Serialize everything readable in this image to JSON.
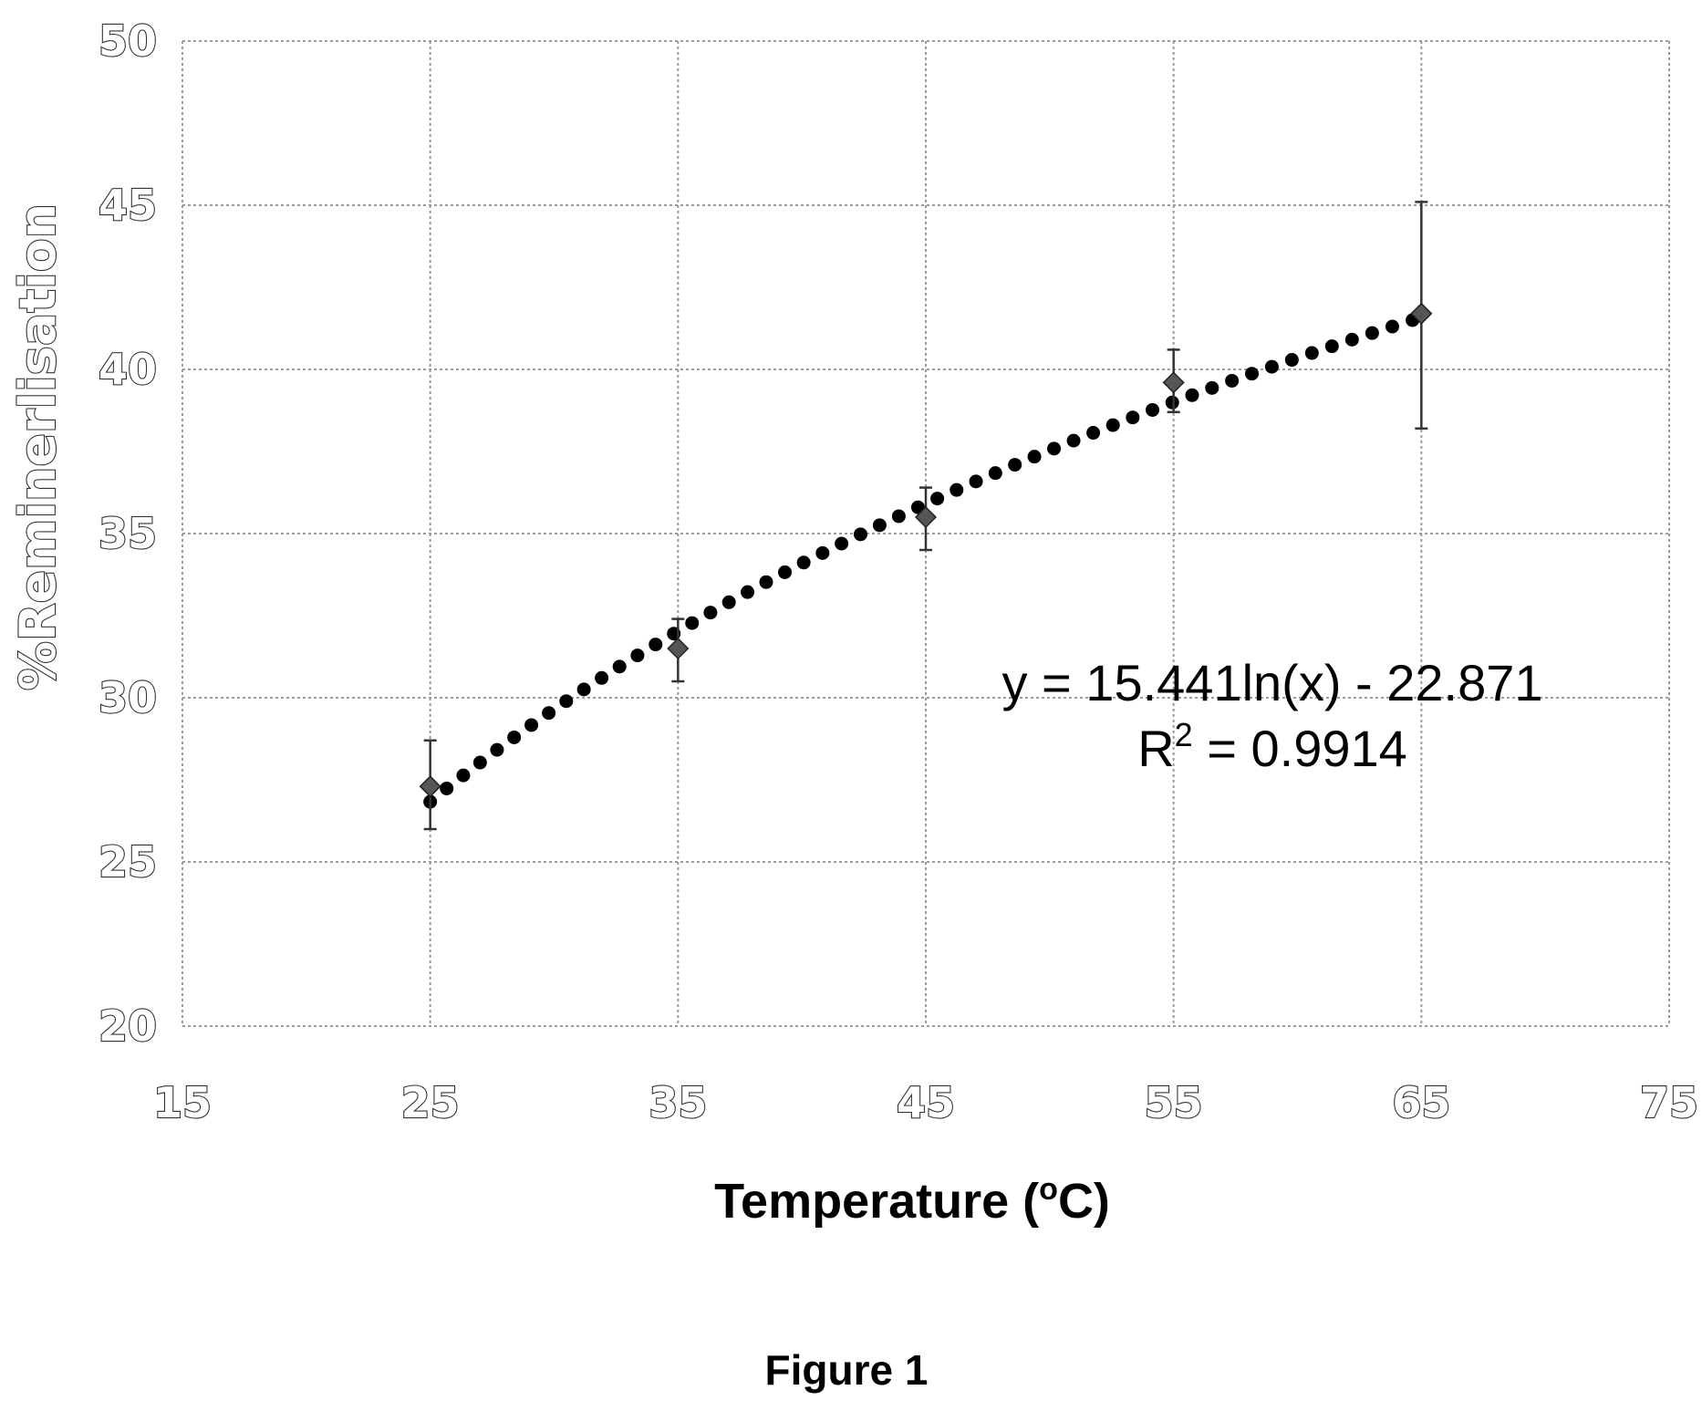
{
  "chart_data": {
    "type": "scatter",
    "xlabel": "Temperature (",
    "xlabel_superscript": "o",
    "xlabel_suffix": "C)",
    "ylabel": "%Reminerlisation",
    "xlim": [
      15,
      75
    ],
    "ylim": [
      20,
      50
    ],
    "x_ticks": [
      15,
      25,
      35,
      45,
      55,
      65,
      75
    ],
    "y_ticks": [
      20,
      25,
      30,
      35,
      40,
      45,
      50
    ],
    "grid": true,
    "series": [
      {
        "x": [
          25,
          35,
          45,
          55,
          65
        ],
        "y": [
          27.3,
          31.5,
          35.5,
          39.6,
          41.7
        ],
        "error_low": [
          26.0,
          30.5,
          34.5,
          38.7,
          38.2
        ],
        "error_high": [
          28.7,
          32.4,
          36.4,
          40.6,
          45.1
        ]
      }
    ],
    "trendline": {
      "type": "log",
      "a": 15.441,
      "b": -22.871,
      "x_range": [
        25,
        65
      ],
      "style": "dotted"
    },
    "annotations": {
      "equation": "y = 15.441ln(x) - 22.871",
      "r2_prefix": "R",
      "r2_superscript": "2",
      "r2_suffix": " = 0.9914"
    }
  },
  "caption": "Figure 1",
  "colors": {
    "grid": "#9a9a9a",
    "marker": "#555555",
    "trend": "#000000",
    "error_bar": "#333333"
  }
}
